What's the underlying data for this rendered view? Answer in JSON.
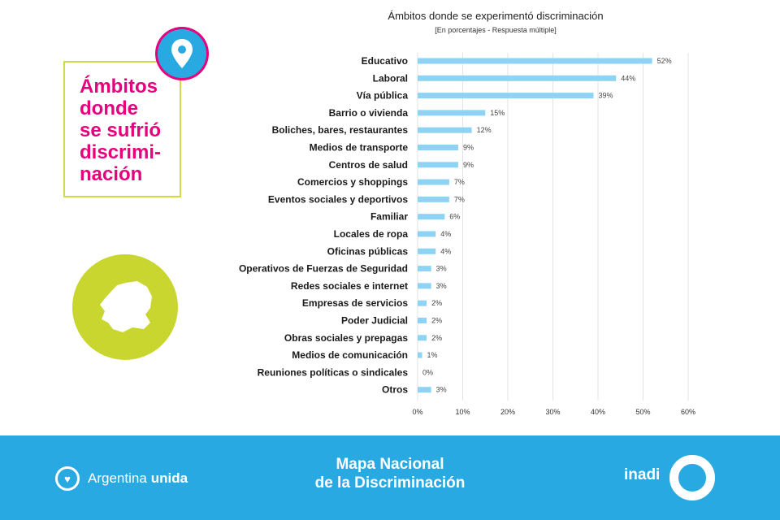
{
  "panel": {
    "title": "Ámbitos\ndonde\nse sufrió\ndiscrimi-\nnación"
  },
  "footer": {
    "brand_prefix": "Argentina",
    "brand_bold": "unida",
    "title_line1": "Mapa Nacional",
    "title_line2": "de la Discriminación",
    "logo_text": "inadi"
  },
  "colors": {
    "bar": "#8ed3f3",
    "accent_pink": "#e6007e",
    "accent_blue": "#29a9e1",
    "accent_lime": "#c9d630"
  },
  "chart_data": {
    "type": "bar",
    "orientation": "horizontal",
    "title": "Ámbitos donde se experimentó discriminación",
    "subtitle": "[En porcentajes - Respuesta múltiple]",
    "categories": [
      "Educativo",
      "Laboral",
      "Vía pública",
      "Barrio o vivienda",
      "Boliches, bares, restaurantes",
      "Medios de transporte",
      "Centros de salud",
      "Comercios y shoppings",
      "Eventos sociales y deportivos",
      "Familiar",
      "Locales de ropa",
      "Oficinas públicas",
      "Operativos de Fuerzas de Seguridad",
      "Redes sociales e internet",
      "Empresas de servicios",
      "Poder Judicial",
      "Obras sociales y prepagas",
      "Medios de comunicación",
      "Reuniones políticas o sindicales",
      "Otros"
    ],
    "values": [
      52,
      44,
      39,
      15,
      12,
      9,
      9,
      7,
      7,
      6,
      4,
      4,
      3,
      3,
      2,
      2,
      2,
      1,
      0,
      3
    ],
    "value_labels": [
      "52%",
      "44%",
      "39%",
      "15%",
      "12%",
      "9%",
      "9%",
      "7%",
      "7%",
      "6%",
      "4%",
      "4%",
      "3%",
      "3%",
      "2%",
      "2%",
      "2%",
      "1%",
      "0%",
      "3%"
    ],
    "xlim": [
      0,
      60
    ],
    "xticks": [
      0,
      10,
      20,
      30,
      40,
      50,
      60
    ],
    "xtick_labels": [
      "0%",
      "10%",
      "20%",
      "30%",
      "40%",
      "50%",
      "60%"
    ],
    "grid": true
  }
}
